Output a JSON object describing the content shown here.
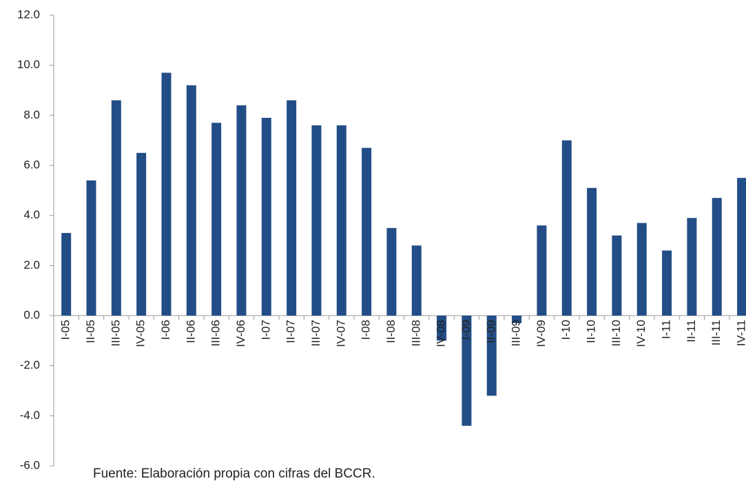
{
  "chart_data": {
    "type": "bar",
    "categories": [
      "I-05",
      "II-05",
      "III-05",
      "IV-05",
      "I-06",
      "II-06",
      "III-06",
      "IV-06",
      "I-07",
      "II-07",
      "III-07",
      "IV-07",
      "I-08",
      "II-08",
      "III-08",
      "IV-08",
      "I-09",
      "II-09",
      "III-09",
      "IV-09",
      "I-10",
      "II-10",
      "III-10",
      "IV-10",
      "I-11",
      "II-11",
      "III-11",
      "IV-11"
    ],
    "values": [
      3.3,
      5.4,
      8.6,
      6.5,
      9.7,
      9.2,
      7.7,
      8.4,
      7.9,
      8.6,
      7.6,
      7.6,
      6.7,
      3.5,
      2.8,
      -1.0,
      -4.4,
      -3.2,
      -0.3,
      3.6,
      7.0,
      5.1,
      3.2,
      3.7,
      2.6,
      3.9,
      4.7,
      5.5
    ],
    "color": "#234d86",
    "ylim": [
      -6,
      12
    ],
    "yticks": [
      {
        "value": -6,
        "label": "-6.0"
      },
      {
        "value": -4,
        "label": "-4.0"
      },
      {
        "value": -2,
        "label": "-2.0"
      },
      {
        "value": 0,
        "label": "0.0"
      },
      {
        "value": 2,
        "label": "2.0"
      },
      {
        "value": 4,
        "label": "4.0"
      },
      {
        "value": 6,
        "label": "6.0"
      },
      {
        "value": 8,
        "label": "8.0"
      },
      {
        "value": 10,
        "label": "10.0"
      },
      {
        "value": 12,
        "label": "12.0"
      }
    ],
    "grid": false,
    "source": "Fuente: Elaboración propia con cifras del BCCR."
  }
}
